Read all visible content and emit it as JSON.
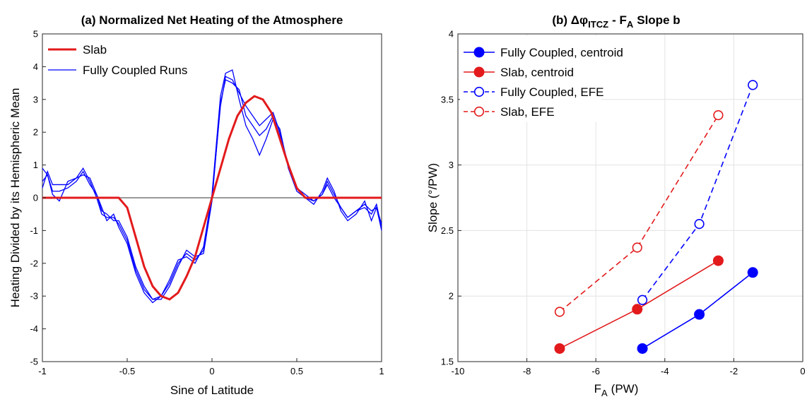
{
  "chart_data": [
    {
      "type": "line",
      "title": "(a) Normalized Net Heating of the Atmosphere",
      "xlabel": "Sine of Latitude",
      "ylabel": "Heating Divided by its Hemispheric Mean",
      "xlim": [
        -1,
        1
      ],
      "ylim": [
        -5,
        5
      ],
      "xticks": [
        -1,
        -0.5,
        0,
        0.5,
        1
      ],
      "xtick_labels": [
        "-1",
        "-0.5",
        "0",
        "0.5",
        "1"
      ],
      "yticks": [
        -5,
        -4,
        -3,
        -2,
        -1,
        0,
        1,
        2,
        3,
        4,
        5
      ],
      "ytick_labels": [
        "-5",
        "-4",
        "-3",
        "-2",
        "-1",
        "0",
        "1",
        "2",
        "3",
        "4",
        "5"
      ],
      "grid": false,
      "legend_position": "top-left",
      "legend": [
        {
          "label": "Slab",
          "color": "#e31a1c"
        },
        {
          "label": "Fully Coupled Runs",
          "color": "#0000ff"
        }
      ],
      "zero_line_color": "#999999",
      "slab": {
        "name": "Slab",
        "color": "#e31a1c",
        "x": [
          -1,
          -0.8,
          -0.6,
          -0.55,
          -0.5,
          -0.45,
          -0.4,
          -0.35,
          -0.3,
          -0.25,
          -0.2,
          -0.15,
          -0.1,
          -0.05,
          0,
          0.05,
          0.1,
          0.15,
          0.2,
          0.25,
          0.3,
          0.35,
          0.4,
          0.45,
          0.5,
          0.55,
          0.6,
          0.8,
          1
        ],
        "y": [
          0,
          0,
          0,
          0,
          -0.3,
          -1.2,
          -2.1,
          -2.7,
          -3.0,
          -3.1,
          -2.9,
          -2.4,
          -1.8,
          -0.9,
          0,
          0.9,
          1.8,
          2.5,
          2.9,
          3.1,
          3.0,
          2.6,
          1.8,
          1.0,
          0.3,
          0,
          0,
          0,
          0
        ]
      },
      "coupled_runs": [
        {
          "color": "#0000ff",
          "x": [
            -1,
            -0.97,
            -0.94,
            -0.9,
            -0.85,
            -0.8,
            -0.76,
            -0.72,
            -0.68,
            -0.65,
            -0.62,
            -0.58,
            -0.55,
            -0.5,
            -0.45,
            -0.4,
            -0.35,
            -0.3,
            -0.25,
            -0.2,
            -0.15,
            -0.1,
            -0.05,
            0,
            0.05,
            0.08,
            0.12,
            0.16,
            0.2,
            0.24,
            0.28,
            0.32,
            0.36,
            0.4,
            0.45,
            0.5,
            0.55,
            0.6,
            0.65,
            0.68,
            0.72,
            0.76,
            0.8,
            0.85,
            0.9,
            0.94,
            0.97,
            1
          ],
          "y": [
            0.9,
            0.7,
            0.1,
            -0.1,
            0.5,
            0.6,
            0.9,
            0.5,
            0.0,
            -0.5,
            -0.6,
            -0.6,
            -0.8,
            -1.3,
            -2.2,
            -2.8,
            -3.1,
            -3.0,
            -2.6,
            -2.0,
            -1.7,
            -1.9,
            -1.6,
            0,
            2.8,
            3.7,
            3.6,
            3.2,
            2.8,
            2.5,
            2.2,
            2.4,
            2.6,
            2.0,
            1.0,
            0.3,
            0,
            -0.1,
            0.1,
            0.5,
            0.1,
            -0.3,
            -0.6,
            -0.4,
            -0.3,
            -0.5,
            -0.2,
            -0.9
          ]
        },
        {
          "color": "#0000ff",
          "x": [
            -1,
            -0.97,
            -0.94,
            -0.9,
            -0.85,
            -0.8,
            -0.76,
            -0.72,
            -0.68,
            -0.65,
            -0.62,
            -0.58,
            -0.55,
            -0.5,
            -0.45,
            -0.4,
            -0.35,
            -0.3,
            -0.25,
            -0.2,
            -0.15,
            -0.1,
            -0.05,
            0,
            0.05,
            0.08,
            0.12,
            0.16,
            0.2,
            0.24,
            0.28,
            0.32,
            0.36,
            0.4,
            0.45,
            0.5,
            0.55,
            0.6,
            0.65,
            0.68,
            0.72,
            0.76,
            0.8,
            0.85,
            0.9,
            0.94,
            0.97,
            1
          ],
          "y": [
            0.3,
            0.8,
            0.4,
            0.4,
            0.4,
            0.6,
            0.7,
            0.6,
            0.1,
            -0.3,
            -0.7,
            -0.5,
            -0.9,
            -1.4,
            -2.3,
            -2.9,
            -3.2,
            -3.0,
            -2.5,
            -1.9,
            -1.8,
            -2.0,
            -1.5,
            0.1,
            3.1,
            3.8,
            3.9,
            3.0,
            2.2,
            1.8,
            1.3,
            1.8,
            2.4,
            2.1,
            0.9,
            0.2,
            0,
            -0.2,
            0.2,
            0.6,
            0.2,
            -0.4,
            -0.7,
            -0.5,
            -0.1,
            -0.7,
            -0.3,
            -1.0
          ]
        },
        {
          "color": "#0000ff",
          "x": [
            -1,
            -0.97,
            -0.94,
            -0.9,
            -0.85,
            -0.8,
            -0.76,
            -0.72,
            -0.68,
            -0.65,
            -0.62,
            -0.58,
            -0.55,
            -0.5,
            -0.45,
            -0.4,
            -0.35,
            -0.3,
            -0.25,
            -0.2,
            -0.15,
            -0.1,
            -0.05,
            0,
            0.05,
            0.08,
            0.12,
            0.16,
            0.2,
            0.24,
            0.28,
            0.32,
            0.36,
            0.4,
            0.45,
            0.5,
            0.55,
            0.6,
            0.65,
            0.68,
            0.72,
            0.76,
            0.8,
            0.85,
            0.9,
            0.94,
            0.97,
            1
          ],
          "y": [
            0.5,
            0.7,
            0.2,
            0.2,
            0.3,
            0.5,
            0.8,
            0.4,
            0.1,
            -0.4,
            -0.5,
            -0.7,
            -0.7,
            -1.2,
            -2.1,
            -2.7,
            -3.1,
            -3.1,
            -2.7,
            -2.1,
            -1.6,
            -1.8,
            -1.7,
            -0.1,
            2.9,
            3.6,
            3.5,
            3.3,
            2.5,
            2.2,
            1.9,
            2.1,
            2.5,
            1.9,
            1.0,
            0.3,
            0.1,
            -0.1,
            0.1,
            0.4,
            0.0,
            -0.3,
            -0.6,
            -0.4,
            -0.2,
            -0.4,
            -0.3,
            -0.8
          ]
        }
      ]
    },
    {
      "type": "line",
      "title": "(b) Δφ",
      "title_subscript": "ITCZ",
      "title_suffix": "- F",
      "title_suffix_subscript": "A",
      "title_end": "Slope b",
      "xlabel": "F",
      "xlabel_subscript": "A",
      "xlabel_suffix": "(PW)",
      "ylabel": "Slope (°/PW)",
      "xlim": [
        -10,
        0
      ],
      "ylim": [
        1.5,
        4
      ],
      "xticks": [
        -10,
        -8,
        -6,
        -4,
        -2,
        0
      ],
      "xtick_labels": [
        "-10",
        "-8",
        "-6",
        "-4",
        "-2",
        "0"
      ],
      "yticks": [
        1.5,
        2,
        2.5,
        3,
        3.5,
        4
      ],
      "ytick_labels": [
        "1.5",
        "2",
        "2.5",
        "3",
        "3.5",
        "4"
      ],
      "grid": true,
      "legend_position": "top-left",
      "series": [
        {
          "name": "Fully Coupled, centroid",
          "color": "#0000ff",
          "dashed": false,
          "filled": true,
          "x": [
            -4.65,
            -3.0,
            -1.45
          ],
          "y": [
            1.6,
            1.86,
            2.18
          ]
        },
        {
          "name": "Slab, centroid",
          "color": "#e31a1c",
          "dashed": false,
          "filled": true,
          "x": [
            -7.05,
            -4.8,
            -2.45
          ],
          "y": [
            1.6,
            1.9,
            2.27
          ]
        },
        {
          "name": "Fully Coupled, EFE",
          "color": "#0000ff",
          "dashed": true,
          "filled": false,
          "x": [
            -4.65,
            -3.0,
            -1.45
          ],
          "y": [
            1.97,
            2.55,
            3.61
          ]
        },
        {
          "name": "Slab, EFE",
          "color": "#e31a1c",
          "dashed": true,
          "filled": false,
          "x": [
            -7.05,
            -4.8,
            -2.45
          ],
          "y": [
            1.88,
            2.37,
            3.38
          ]
        }
      ]
    }
  ]
}
